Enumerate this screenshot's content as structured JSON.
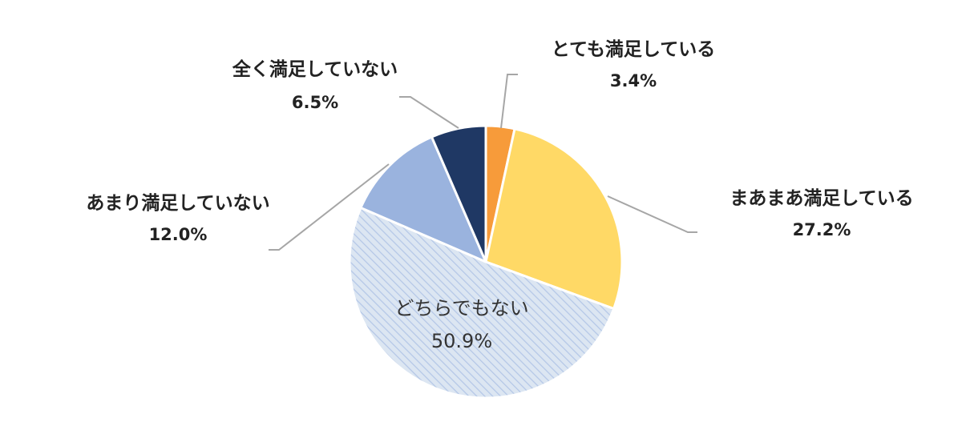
{
  "chart_data": {
    "type": "pie",
    "start_angle_deg": 0,
    "direction": "clockwise",
    "slices": [
      {
        "label": "とても満足している",
        "value": 3.4,
        "value_label": "3.4%",
        "color": "#f79b3a"
      },
      {
        "label": "まあまあ満足している",
        "value": 27.2,
        "value_label": "27.2%",
        "color": "#ffd966"
      },
      {
        "label": "どちらでもない",
        "value": 50.9,
        "value_label": "50.9%",
        "color": "#dce6f2",
        "pattern": "diagonal-stripes",
        "pattern_color": "#b4c7e7"
      },
      {
        "label": "あまり満足していない",
        "value": 12.0,
        "value_label": "12.0%",
        "color": "#9ab3de"
      },
      {
        "label": "全く満足していない",
        "value": 6.5,
        "value_label": "6.5%",
        "color": "#1f3864"
      }
    ]
  }
}
